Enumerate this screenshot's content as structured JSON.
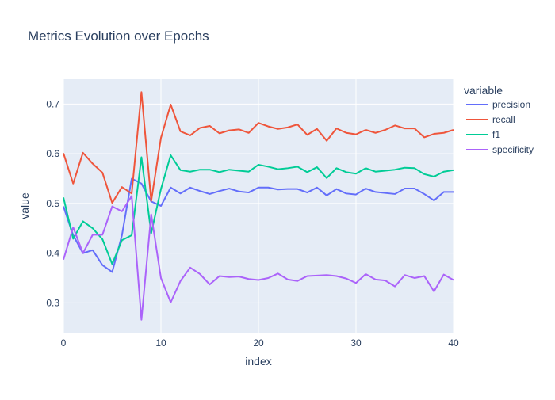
{
  "chart_data": {
    "type": "line",
    "title": "Metrics Evolution over Epochs",
    "xlabel": "index",
    "ylabel": "value",
    "legend_title": "variable",
    "legend_position": "right",
    "grid": true,
    "xlim": [
      0,
      40
    ],
    "ylim": [
      0.24,
      0.75
    ],
    "x_ticks": [
      0,
      10,
      20,
      30,
      40
    ],
    "y_ticks": [
      0.3,
      0.4,
      0.5,
      0.6,
      0.7
    ],
    "x": [
      0,
      1,
      2,
      3,
      4,
      5,
      6,
      7,
      8,
      9,
      10,
      11,
      12,
      13,
      14,
      15,
      16,
      17,
      18,
      19,
      20,
      21,
      22,
      23,
      24,
      25,
      26,
      27,
      28,
      29,
      30,
      31,
      32,
      33,
      34,
      35,
      36,
      37,
      38,
      39,
      40
    ],
    "series": [
      {
        "name": "precision",
        "color": "#636efa",
        "values": [
          0.494,
          0.436,
          0.4,
          0.406,
          0.376,
          0.362,
          0.436,
          0.55,
          0.54,
          0.504,
          0.495,
          0.532,
          0.52,
          0.532,
          0.525,
          0.519,
          0.525,
          0.53,
          0.524,
          0.522,
          0.532,
          0.532,
          0.528,
          0.529,
          0.529,
          0.522,
          0.532,
          0.516,
          0.529,
          0.52,
          0.518,
          0.53,
          0.523,
          0.521,
          0.519,
          0.53,
          0.53,
          0.519,
          0.506,
          0.523,
          0.523
        ]
      },
      {
        "name": "recall",
        "color": "#ef553b",
        "values": [
          0.601,
          0.54,
          0.602,
          0.58,
          0.562,
          0.501,
          0.533,
          0.52,
          0.724,
          0.505,
          0.632,
          0.699,
          0.645,
          0.637,
          0.652,
          0.656,
          0.641,
          0.647,
          0.649,
          0.642,
          0.662,
          0.655,
          0.65,
          0.653,
          0.659,
          0.638,
          0.65,
          0.626,
          0.651,
          0.642,
          0.639,
          0.648,
          0.642,
          0.648,
          0.657,
          0.651,
          0.651,
          0.633,
          0.64,
          0.642,
          0.648
        ]
      },
      {
        "name": "f1",
        "color": "#00cc96",
        "values": [
          0.512,
          0.429,
          0.464,
          0.45,
          0.428,
          0.378,
          0.426,
          0.436,
          0.593,
          0.44,
          0.529,
          0.597,
          0.567,
          0.564,
          0.568,
          0.568,
          0.563,
          0.568,
          0.566,
          0.564,
          0.578,
          0.574,
          0.569,
          0.571,
          0.574,
          0.563,
          0.573,
          0.551,
          0.571,
          0.563,
          0.56,
          0.571,
          0.564,
          0.566,
          0.568,
          0.572,
          0.571,
          0.559,
          0.554,
          0.564,
          0.567
        ]
      },
      {
        "name": "specificity",
        "color": "#ab63fa",
        "values": [
          0.387,
          0.452,
          0.4,
          0.437,
          0.437,
          0.494,
          0.484,
          0.515,
          0.266,
          0.478,
          0.35,
          0.301,
          0.344,
          0.371,
          0.358,
          0.337,
          0.354,
          0.352,
          0.353,
          0.348,
          0.346,
          0.35,
          0.359,
          0.347,
          0.344,
          0.354,
          0.355,
          0.356,
          0.354,
          0.349,
          0.34,
          0.358,
          0.347,
          0.345,
          0.333,
          0.356,
          0.35,
          0.354,
          0.323,
          0.357,
          0.346
        ]
      }
    ]
  }
}
